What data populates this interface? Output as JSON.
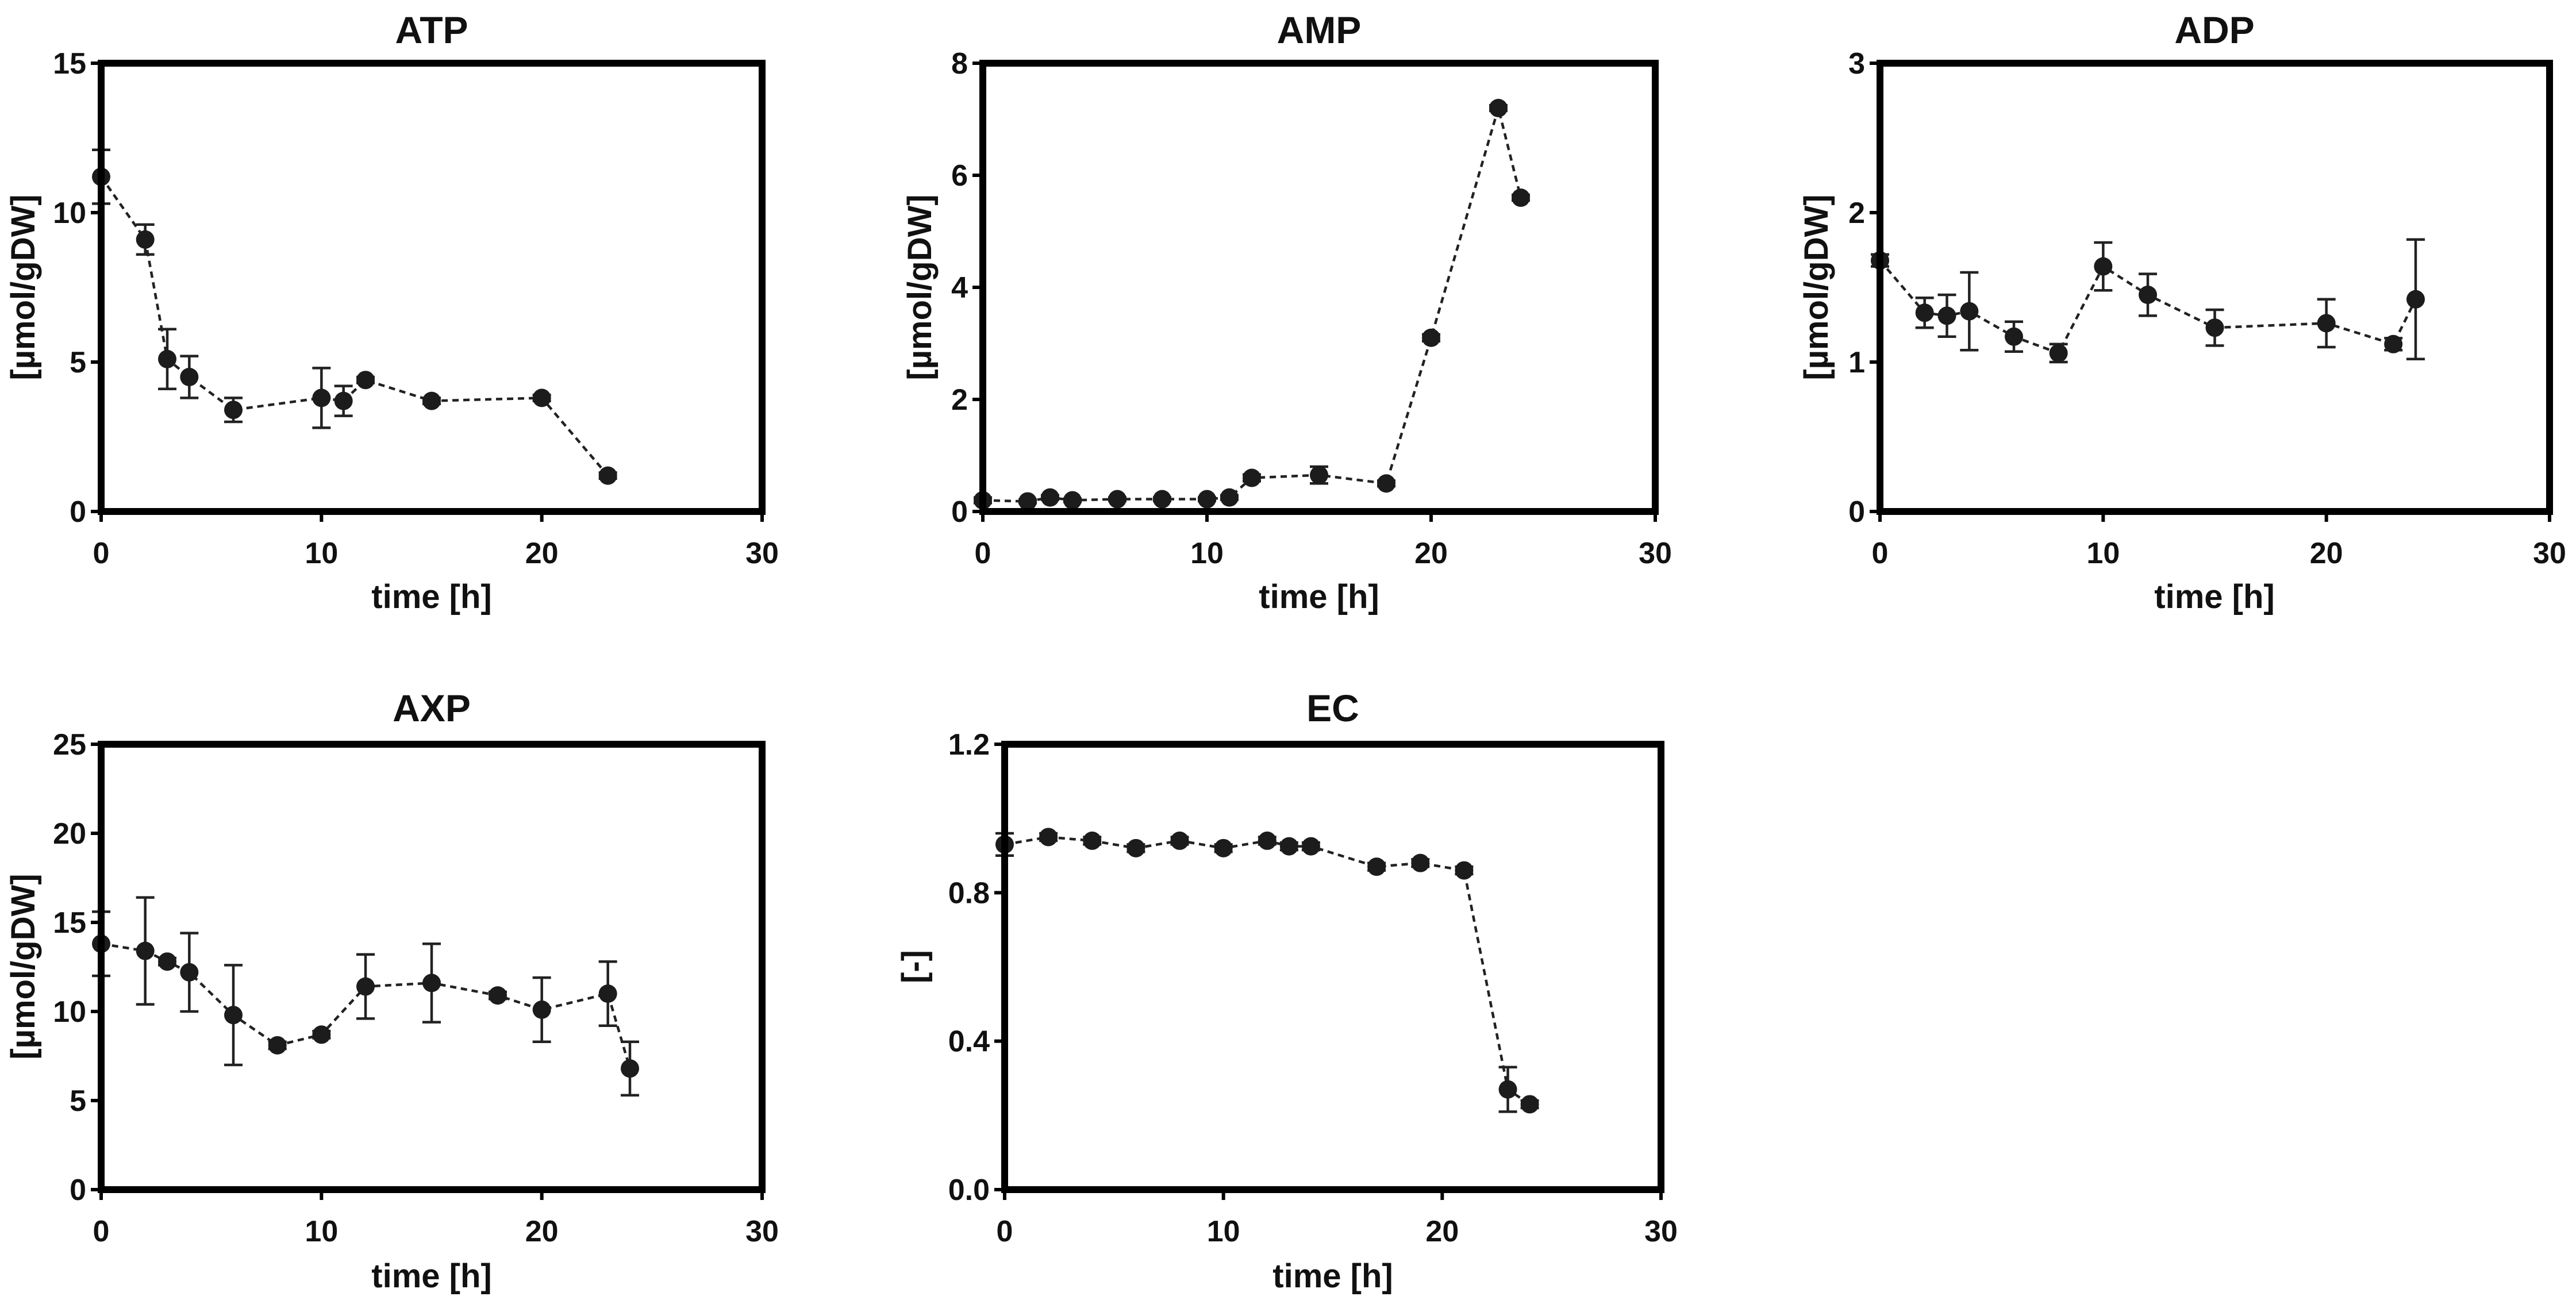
{
  "chart_data": [
    {
      "id": "atp",
      "type": "scatter",
      "title": "ATP",
      "xlabel": "time [h]",
      "ylabel": "[µmol/gDW]",
      "xlim": [
        0,
        30
      ],
      "ylim": [
        0,
        15
      ],
      "xticks": [
        0,
        10,
        20,
        30
      ],
      "xtick_labels": [
        "0",
        "10",
        "20",
        "30"
      ],
      "yticks": [
        0,
        5,
        10,
        15
      ],
      "ytick_labels": [
        "0",
        "5",
        "10",
        "15"
      ],
      "x": [
        0,
        2,
        3,
        4,
        6,
        10,
        11,
        12,
        15,
        20,
        23
      ],
      "y": [
        11.2,
        9.1,
        5.1,
        4.5,
        3.4,
        3.8,
        3.7,
        4.4,
        3.7,
        3.8,
        1.2
      ],
      "err": [
        0.9,
        0.5,
        1.0,
        0.7,
        0.4,
        1.0,
        0.5,
        0.1,
        0.1,
        0.1,
        0.1
      ]
    },
    {
      "id": "amp",
      "type": "scatter",
      "title": "AMP",
      "xlabel": "time [h]",
      "ylabel": "[µmol/gDW]",
      "xlim": [
        0,
        30
      ],
      "ylim": [
        0,
        8
      ],
      "xticks": [
        0,
        10,
        20,
        30
      ],
      "xtick_labels": [
        "0",
        "10",
        "20",
        "30"
      ],
      "yticks": [
        0,
        2,
        4,
        6,
        8
      ],
      "ytick_labels": [
        "0",
        "2",
        "4",
        "6",
        "8"
      ],
      "x": [
        0,
        2,
        3,
        4,
        6,
        8,
        10,
        11,
        12,
        15,
        18,
        20,
        23,
        24
      ],
      "y": [
        0.2,
        0.18,
        0.25,
        0.2,
        0.22,
        0.22,
        0.22,
        0.25,
        0.6,
        0.65,
        0.5,
        3.1,
        7.2,
        5.6
      ],
      "err": [
        0.05,
        0.03,
        0.04,
        0.03,
        0.03,
        0.03,
        0.03,
        0.04,
        0.06,
        0.15,
        0.05,
        0.06,
        0.05,
        0.05
      ]
    },
    {
      "id": "adp",
      "type": "scatter",
      "title": "ADP",
      "xlabel": "time [h]",
      "ylabel": "[µmol/gDW]",
      "xlim": [
        0,
        30
      ],
      "ylim": [
        0,
        3
      ],
      "xticks": [
        0,
        10,
        20,
        30
      ],
      "xtick_labels": [
        "0",
        "10",
        "20",
        "30"
      ],
      "yticks": [
        0,
        1,
        2,
        3
      ],
      "ytick_labels": [
        "0",
        "1",
        "2",
        "3"
      ],
      "x": [
        0,
        2,
        3,
        4,
        6,
        8,
        10,
        12,
        15,
        20,
        23,
        24
      ],
      "y": [
        1.68,
        1.33,
        1.31,
        1.34,
        1.17,
        1.06,
        1.64,
        1.45,
        1.23,
        1.26,
        1.12,
        1.42
      ],
      "err": [
        0.04,
        0.1,
        0.14,
        0.26,
        0.1,
        0.06,
        0.16,
        0.14,
        0.12,
        0.16,
        0.04,
        0.4
      ]
    },
    {
      "id": "axp",
      "type": "scatter",
      "title": "AXP",
      "xlabel": "time [h]",
      "ylabel": "[µmol/gDW]",
      "xlim": [
        0,
        30
      ],
      "ylim": [
        0,
        25
      ],
      "xticks": [
        0,
        10,
        20,
        30
      ],
      "xtick_labels": [
        "0",
        "10",
        "20",
        "30"
      ],
      "yticks": [
        0,
        5,
        10,
        15,
        20,
        25
      ],
      "ytick_labels": [
        "0",
        "5",
        "10",
        "15",
        "20",
        "25"
      ],
      "x": [
        0,
        2,
        3,
        4,
        6,
        8,
        10,
        12,
        15,
        18,
        20,
        23,
        24
      ],
      "y": [
        13.8,
        13.4,
        12.8,
        12.2,
        9.8,
        8.1,
        8.7,
        11.4,
        11.6,
        10.9,
        10.1,
        11.0,
        6.8
      ],
      "err": [
        1.8,
        3.0,
        0.2,
        2.2,
        2.8,
        0.2,
        0.2,
        1.8,
        2.2,
        0.2,
        1.8,
        1.8,
        1.5
      ]
    },
    {
      "id": "ec",
      "type": "scatter",
      "title": "EC",
      "xlabel": "time [h]",
      "ylabel": "[-]",
      "xlim": [
        0,
        30
      ],
      "ylim": [
        0,
        1.2
      ],
      "xticks": [
        0,
        10,
        20,
        30
      ],
      "xtick_labels": [
        "0",
        "10",
        "20",
        "30"
      ],
      "yticks": [
        0,
        0.4,
        0.8,
        1.2
      ],
      "ytick_labels": [
        "0.0",
        "0.4",
        "0.8",
        "1.2"
      ],
      "x": [
        0,
        2,
        4,
        6,
        8,
        10,
        12,
        13,
        14,
        17,
        19,
        21,
        23,
        24
      ],
      "y": [
        0.93,
        0.95,
        0.94,
        0.92,
        0.94,
        0.92,
        0.94,
        0.925,
        0.925,
        0.87,
        0.88,
        0.86,
        0.27,
        0.23
      ],
      "err": [
        0.03,
        0.01,
        0.01,
        0.01,
        0.01,
        0.01,
        0.01,
        0.01,
        0.01,
        0.01,
        0.01,
        0.01,
        0.06,
        0.01
      ]
    }
  ]
}
